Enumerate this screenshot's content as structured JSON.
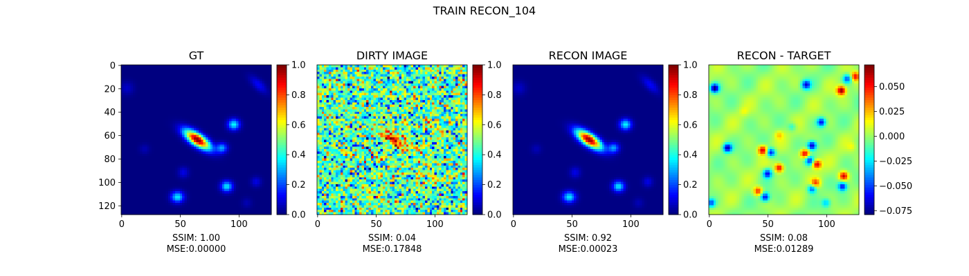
{
  "figure": {
    "suptitle": "TRAIN RECON_104",
    "colors": {
      "jet": [
        "#00007f",
        "#0000ff",
        "#007fff",
        "#00ffff",
        "#7fff7f",
        "#ffff00",
        "#ff7f00",
        "#ff0000",
        "#7f0000"
      ]
    }
  },
  "chart_data": [
    {
      "type": "heatmap",
      "title": "GT",
      "image_size": 128,
      "xticks": [
        "0",
        "50",
        "100"
      ],
      "yticks": [
        "0",
        "20",
        "40",
        "60",
        "80",
        "100",
        "120"
      ],
      "clim": [
        0,
        1
      ],
      "colorbar_ticks": [
        "0.0",
        "0.2",
        "0.4",
        "0.6",
        "0.8",
        "1.0"
      ],
      "colorbar_values": [
        0,
        0.2,
        0.4,
        0.6,
        0.8,
        1.0
      ],
      "caption": [
        "SSIM: 1.00",
        "MSE:0.00000"
      ]
    },
    {
      "type": "heatmap",
      "title": "DIRTY IMAGE",
      "image_size": 128,
      "xticks": [
        "0",
        "50",
        "100"
      ],
      "clim": [
        0,
        1
      ],
      "colorbar_ticks": [
        "0.0",
        "0.2",
        "0.4",
        "0.6",
        "0.8",
        "1.0"
      ],
      "colorbar_values": [
        0,
        0.2,
        0.4,
        0.6,
        0.8,
        1.0
      ],
      "caption": [
        "SSIM: 0.04",
        "MSE:0.17848"
      ]
    },
    {
      "type": "heatmap",
      "title": "RECON IMAGE",
      "image_size": 128,
      "xticks": [
        "0",
        "50",
        "100"
      ],
      "clim": [
        0,
        1
      ],
      "colorbar_ticks": [
        "0.0",
        "0.2",
        "0.4",
        "0.6",
        "0.8",
        "1.0"
      ],
      "colorbar_values": [
        0,
        0.2,
        0.4,
        0.6,
        0.8,
        1.0
      ],
      "caption": [
        "SSIM: 0.92",
        "MSE:0.00023"
      ]
    },
    {
      "type": "heatmap",
      "title": "RECON - TARGET",
      "image_size": 128,
      "xticks": [
        "0",
        "50",
        "100"
      ],
      "clim": [
        -0.079,
        0.072
      ],
      "colorbar_ticks": [
        "−0.075",
        "−0.050",
        "−0.025",
        "0.000",
        "0.025",
        "0.050"
      ],
      "colorbar_values": [
        -0.075,
        -0.05,
        -0.025,
        0,
        0.025,
        0.05
      ],
      "caption": [
        "SSIM: 0.08",
        "MSE:0.01289"
      ]
    }
  ]
}
